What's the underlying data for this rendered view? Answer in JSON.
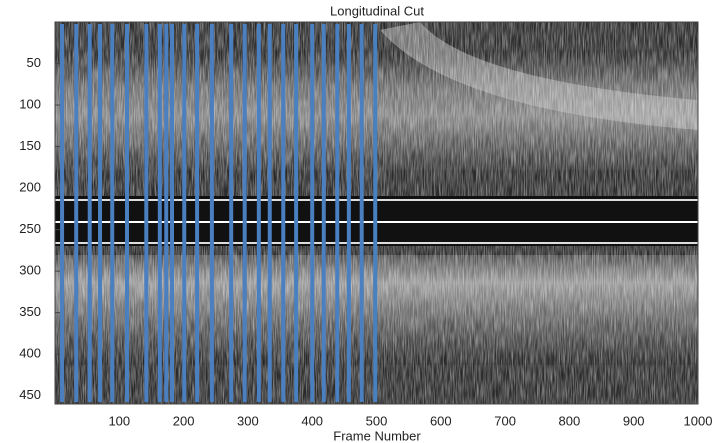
{
  "chart_data": {
    "type": "image_lines",
    "title": "Longitudinal Cut",
    "x_label": "Frame Number",
    "xlim": [
      0,
      1000
    ],
    "xticks": [
      100,
      200,
      300,
      400,
      500,
      600,
      700,
      800,
      900,
      1000
    ],
    "ylim": [
      0,
      460
    ],
    "yticks": [
      50,
      100,
      150,
      200,
      250,
      300,
      350,
      400,
      450
    ],
    "y_reversed": true,
    "color": "#4a7fc0",
    "values": [
      11,
      33,
      54,
      70,
      89,
      112,
      142,
      163,
      173,
      182,
      201,
      221,
      244,
      274,
      295,
      317,
      334,
      355,
      375,
      400,
      418,
      439,
      457,
      477,
      498
    ]
  }
}
